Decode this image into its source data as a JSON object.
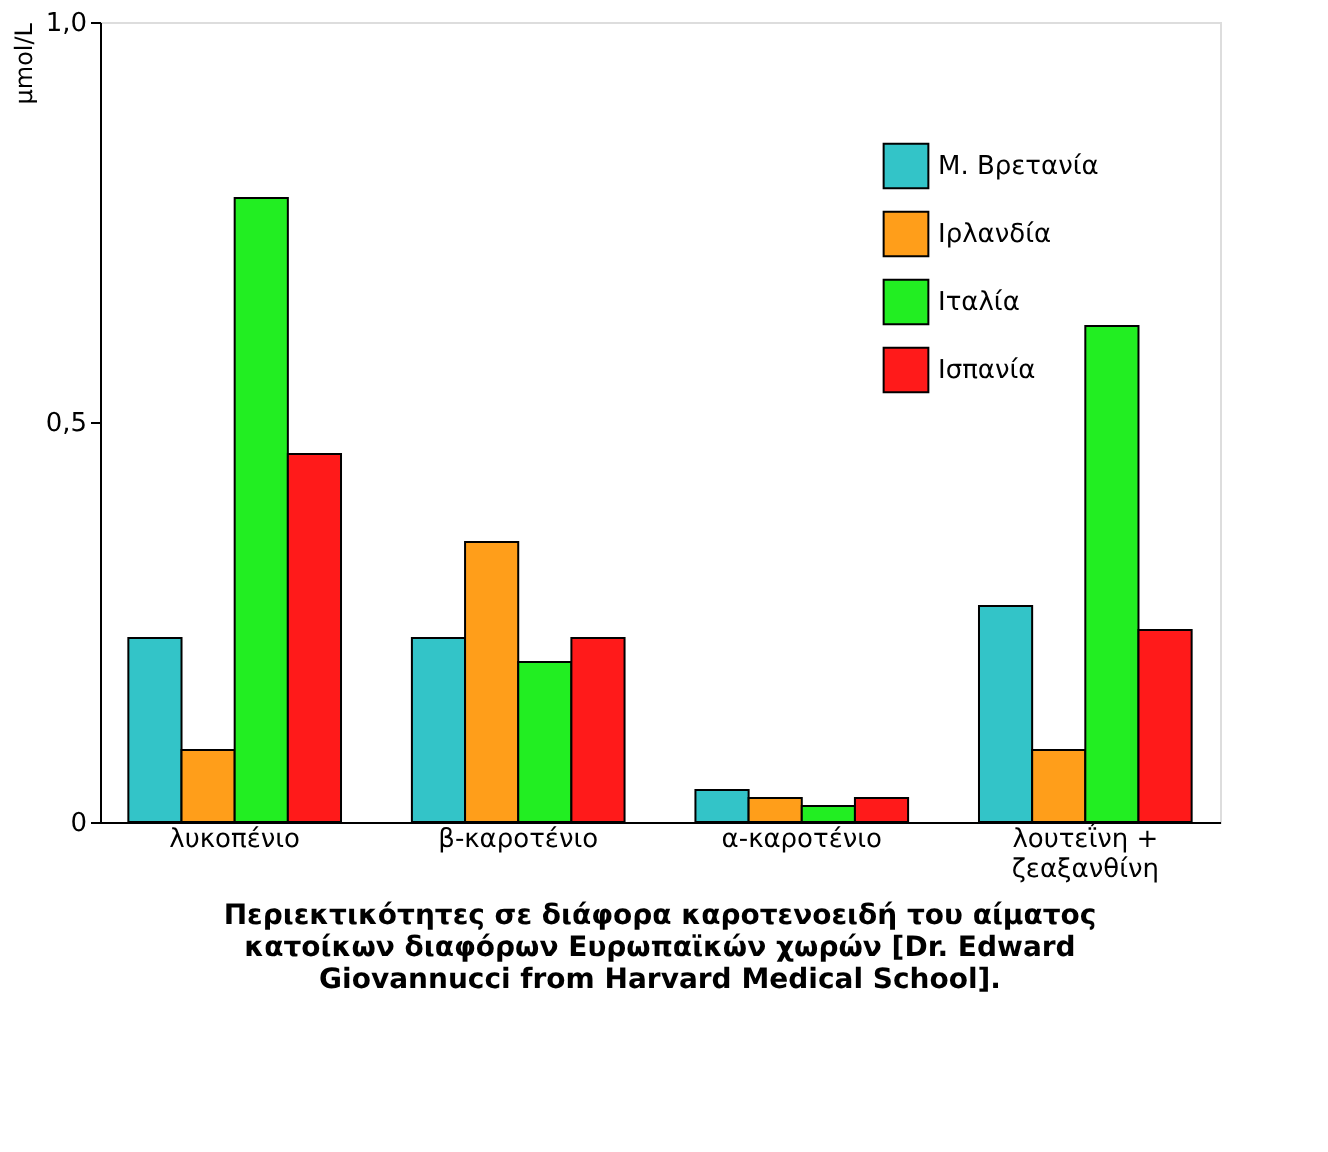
{
  "chart_data": {
    "type": "bar",
    "ylabel": "μmol/L",
    "categories": [
      "λυκοπένιο",
      "β-καροτένιο",
      "α-καροτένιο",
      "λουτεΐνη + ζεαξανθίνη"
    ],
    "series": [
      {
        "name": "Μ. Βρετανία",
        "color": "#33c4c8",
        "values": [
          0.23,
          0.23,
          0.04,
          0.27
        ]
      },
      {
        "name": "Ιρλανδία",
        "color": "#ff9e1a",
        "values": [
          0.09,
          0.35,
          0.03,
          0.09
        ]
      },
      {
        "name": "Ιταλία",
        "color": "#22ee22",
        "values": [
          0.78,
          0.2,
          0.02,
          0.62
        ]
      },
      {
        "name": "Ισπανία",
        "color": "#ff1a1a",
        "values": [
          0.46,
          0.23,
          0.03,
          0.24
        ]
      }
    ],
    "ylim": [
      0,
      1
    ],
    "yticks": [
      0,
      {
        "value": 0.5,
        "label": "0,5"
      },
      {
        "value": 1,
        "label": "1,0"
      }
    ],
    "grid": false,
    "legend": "top right",
    "annotations": [
      "Περιεκτικότητες σε διάφορα καροτενοειδή του αίματος κατοίκων διαφόρων Ευρωπαϊκών χωρών [Dr. Edward Giovannucci from Harvard Medical School]."
    ]
  }
}
